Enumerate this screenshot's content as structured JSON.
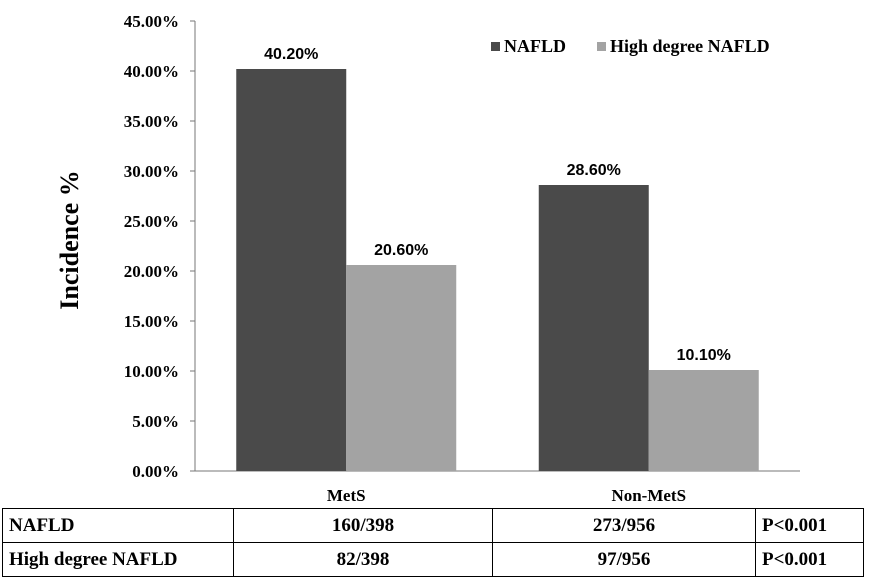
{
  "chart_data": {
    "type": "bar",
    "categories": [
      "MetS",
      "Non-MetS"
    ],
    "series": [
      {
        "name": "NAFLD",
        "values": [
          40.2,
          28.6
        ],
        "labels": [
          "40.20%",
          "28.60%"
        ],
        "color": "#4a4a4a"
      },
      {
        "name": "High degree NAFLD",
        "values": [
          20.6,
          10.1
        ],
        "labels": [
          "20.60%",
          "10.10%"
        ],
        "color": "#a3a3a3"
      }
    ],
    "ylabel": "Incidence %",
    "ylim": [
      0,
      45
    ],
    "yticks": [
      0,
      5,
      10,
      15,
      20,
      25,
      30,
      35,
      40,
      45
    ],
    "ytick_labels": [
      "0.00%",
      "5.00%",
      "10.00%",
      "15.00%",
      "20.00%",
      "25.00%",
      "30.00%",
      "35.00%",
      "40.00%",
      "45.00%"
    ],
    "legend_position": "top-right",
    "grid": false
  },
  "table": {
    "rows": [
      {
        "label": "NAFLD",
        "mets": "160/398",
        "non_mets": "273/956",
        "p": "P<0.001"
      },
      {
        "label": "High degree NAFLD",
        "mets": "82/398",
        "non_mets": "97/956",
        "p": "P<0.001"
      }
    ]
  }
}
